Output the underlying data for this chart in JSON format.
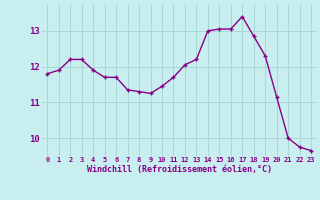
{
  "x": [
    0,
    1,
    2,
    3,
    4,
    5,
    6,
    7,
    8,
    9,
    10,
    11,
    12,
    13,
    14,
    15,
    16,
    17,
    18,
    19,
    20,
    21,
    22,
    23
  ],
  "y": [
    11.8,
    11.9,
    12.2,
    12.2,
    11.9,
    11.7,
    11.7,
    11.35,
    11.3,
    11.25,
    11.45,
    11.7,
    12.05,
    12.2,
    13.0,
    13.05,
    13.05,
    13.4,
    12.85,
    12.3,
    11.15,
    10.0,
    9.75,
    9.65
  ],
  "line_color": "#880088",
  "marker": "+",
  "bg_color": "#c8eef0",
  "grid_color": "#a8d8d8",
  "xlabel": "Windchill (Refroidissement éolien,°C)",
  "xlabel_color": "#880088",
  "tick_color": "#880088",
  "ylim": [
    9.5,
    13.75
  ],
  "yticks": [
    10,
    11,
    12,
    13
  ],
  "xticks": [
    0,
    1,
    2,
    3,
    4,
    5,
    6,
    7,
    8,
    9,
    10,
    11,
    12,
    13,
    14,
    15,
    16,
    17,
    18,
    19,
    20,
    21,
    22,
    23
  ],
  "xtick_labels": [
    "0",
    "1",
    "2",
    "3",
    "4",
    "5",
    "6",
    "7",
    "8",
    "9",
    "10",
    "11",
    "12",
    "13",
    "14",
    "15",
    "16",
    "17",
    "18",
    "19",
    "20",
    "21",
    "22",
    "23"
  ],
  "line_width": 1.0,
  "marker_size": 3.5
}
